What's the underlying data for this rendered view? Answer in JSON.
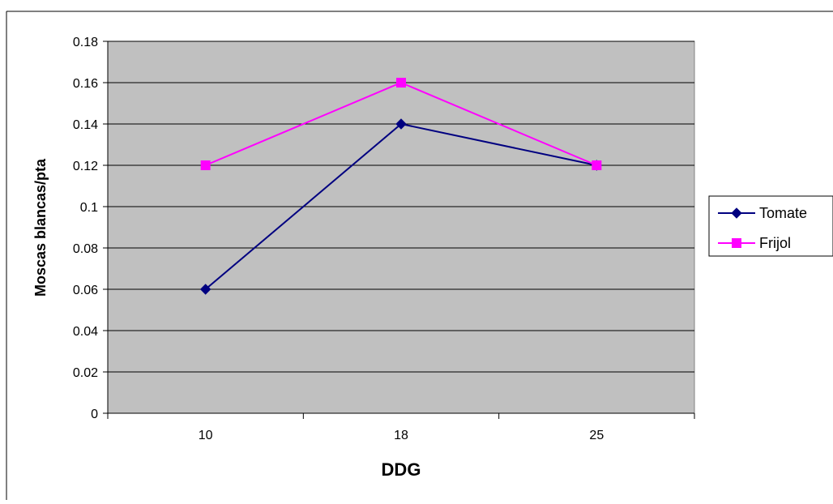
{
  "chart_data": {
    "type": "line",
    "title": "",
    "xlabel": "DDG",
    "ylabel": "Moscas blancas/pta",
    "categories": [
      "10",
      "18",
      "25"
    ],
    "ylim": [
      0,
      0.18
    ],
    "yticks": [
      "0",
      "0.02",
      "0.04",
      "0.06",
      "0.08",
      "0.1",
      "0.12",
      "0.14",
      "0.16",
      "0.18"
    ],
    "grid": true,
    "legend_position": "right",
    "plot_background": "#C0C0C0",
    "series": [
      {
        "name": "Tomate",
        "values": [
          0.06,
          0.14,
          0.12
        ],
        "color": "#000080",
        "marker": "diamond"
      },
      {
        "name": "Frijol",
        "values": [
          0.12,
          0.16,
          0.12
        ],
        "color": "#FF00FF",
        "marker": "square"
      }
    ]
  }
}
